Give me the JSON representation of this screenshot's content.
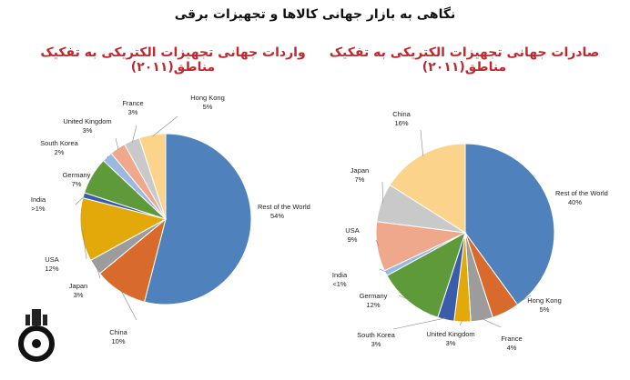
{
  "page": {
    "title": "نگاهی به بازار جهانی کالاها و تجهیزات برقی"
  },
  "chart_data": [
    {
      "type": "pie",
      "title": "واردات جهانی تجهیزات الکتریکی به تفکیک",
      "subtitle": "مناطق(۲۰۱۱)",
      "categories": [
        "Rest of the World",
        "China",
        "Japan",
        "USA",
        "India",
        "Germany",
        "South Korea",
        "United Kingdom",
        "France",
        "Hong Kong"
      ],
      "value_labels": [
        "54%",
        "10%",
        "3%",
        "12%",
        ">1%",
        "7%",
        "2%",
        "3%",
        "3%",
        "5%"
      ],
      "values": [
        54,
        10,
        3,
        12,
        1,
        7,
        2,
        3,
        3,
        5
      ],
      "colors": [
        "#4f81bd",
        "#d86b2b",
        "#9c9c9c",
        "#e3a90b",
        "#3a5daa",
        "#5f9a3a",
        "#9ab8e0",
        "#f0a88c",
        "#c9c9c9",
        "#fcd38a"
      ]
    },
    {
      "type": "pie",
      "title": "صادرات جهانی تجهیزات الکتریکی به تفکیک",
      "subtitle": "مناطق(۲۰۱۱)",
      "categories": [
        "Rest of the World",
        "Hong Kong",
        "France",
        "United Kingdom",
        "South Korea",
        "Germany",
        "India",
        "USA",
        "Japan",
        "China"
      ],
      "value_labels": [
        "40%",
        "5%",
        "4%",
        "3%",
        "3%",
        "12%",
        "<1%",
        "9%",
        "7%",
        "16%"
      ],
      "values": [
        40,
        5,
        4,
        3,
        3,
        12,
        1,
        9,
        7,
        16
      ],
      "colors": [
        "#4f81bd",
        "#d86b2b",
        "#9c9c9c",
        "#e3a90b",
        "#3a5daa",
        "#5f9a3a",
        "#9ab8e0",
        "#f0a88c",
        "#c9c9c9",
        "#fcd38a"
      ]
    }
  ]
}
